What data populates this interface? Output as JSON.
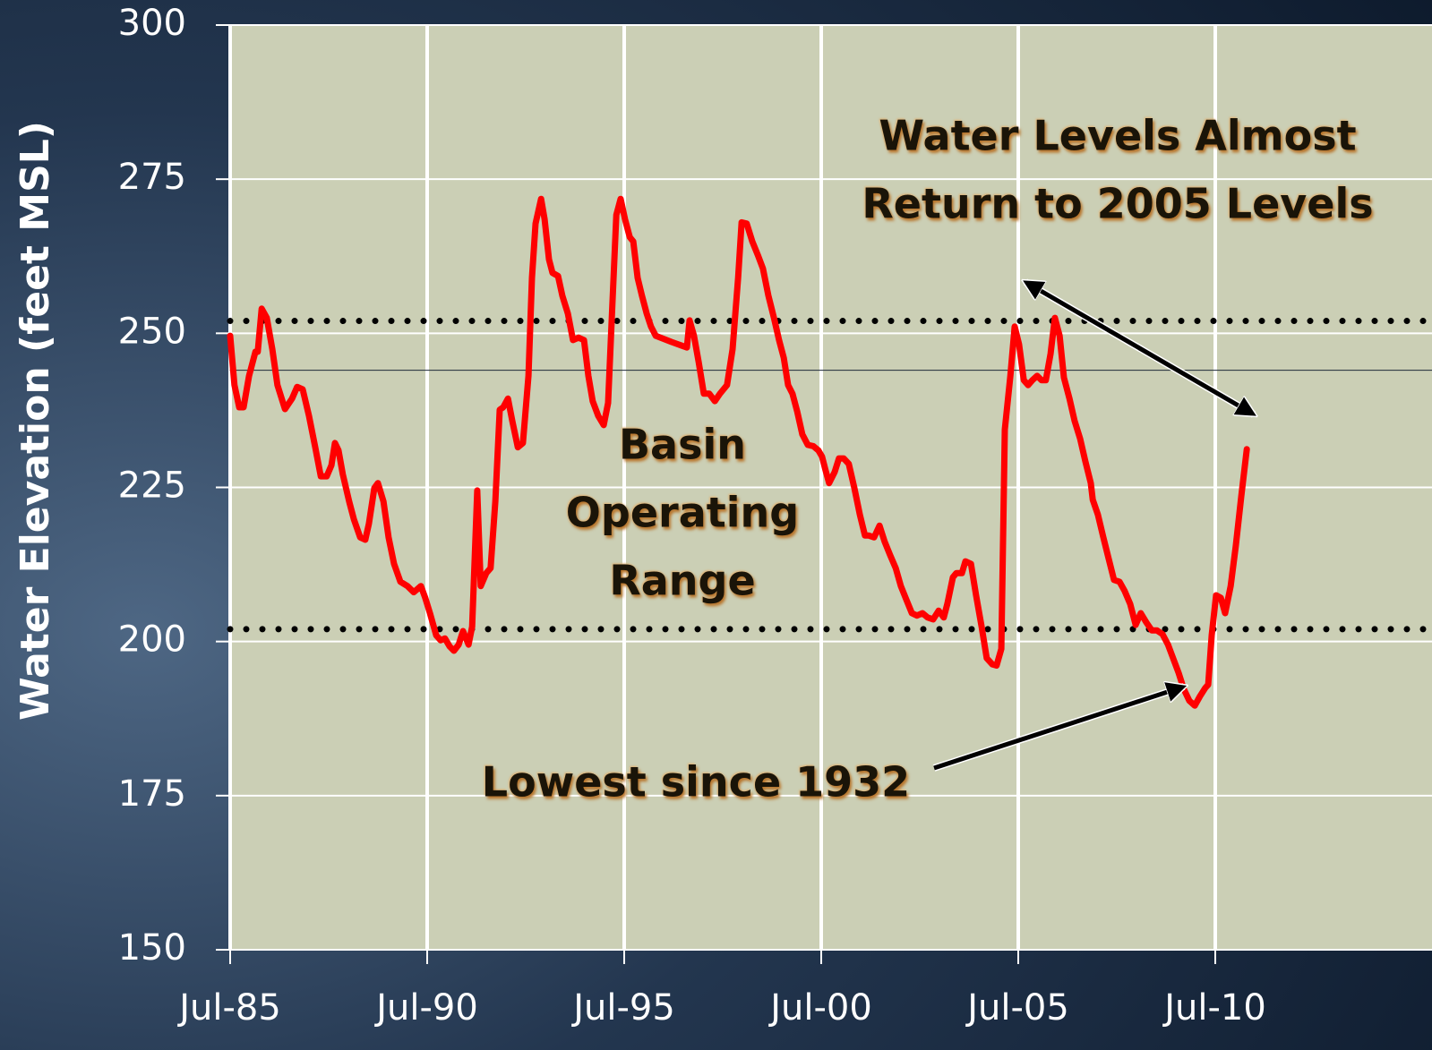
{
  "chart_data": {
    "type": "line",
    "y_label": "Water Elevation (feet MSL)",
    "x": [
      1985.5,
      1985.61,
      1985.73,
      1985.84,
      1985.98,
      1986.14,
      1986.2,
      1986.3,
      1986.43,
      1986.57,
      1986.7,
      1986.89,
      1987.07,
      1987.2,
      1987.34,
      1987.5,
      1987.66,
      1987.8,
      1987.95,
      1988.07,
      1988.16,
      1988.25,
      1988.36,
      1988.52,
      1988.64,
      1988.8,
      1988.93,
      1989.02,
      1989.16,
      1989.25,
      1989.39,
      1989.52,
      1989.66,
      1989.82,
      1990.0,
      1990.16,
      1990.34,
      1990.45,
      1990.57,
      1990.73,
      1990.84,
      1990.95,
      1991.07,
      1991.18,
      1991.3,
      1991.41,
      1991.55,
      1991.64,
      1991.77,
      1991.86,
      1992.0,
      1992.11,
      1992.23,
      1992.34,
      1992.43,
      1992.55,
      1992.66,
      1992.8,
      1992.93,
      1993.07,
      1993.16,
      1993.25,
      1993.39,
      1993.48,
      1993.59,
      1993.68,
      1993.82,
      1993.93,
      1994.07,
      1994.2,
      1994.34,
      1994.48,
      1994.59,
      1994.7,
      1994.84,
      1994.98,
      1995.09,
      1995.2,
      1995.3,
      1995.41,
      1995.52,
      1995.64,
      1995.73,
      1995.84,
      1995.95,
      1996.07,
      1996.18,
      1996.3,
      1996.7,
      1997.09,
      1997.16,
      1997.27,
      1997.39,
      1997.52,
      1997.66,
      1997.8,
      1997.93,
      1998.11,
      1998.25,
      1998.39,
      1998.48,
      1998.61,
      1998.75,
      1998.89,
      1999.02,
      1999.16,
      1999.3,
      1999.43,
      1999.55,
      1999.66,
      1999.77,
      1999.89,
      2000.02,
      2000.16,
      2000.3,
      2000.43,
      2000.52,
      2000.61,
      2000.7,
      2000.84,
      2000.95,
      2001.07,
      2001.2,
      2001.34,
      2001.48,
      2001.61,
      2001.7,
      2001.84,
      2001.98,
      2002.11,
      2002.25,
      2002.39,
      2002.52,
      2002.66,
      2002.8,
      2002.93,
      2003.07,
      2003.2,
      2003.34,
      2003.48,
      2003.61,
      2003.7,
      2003.84,
      2003.93,
      2004.07,
      2004.16,
      2004.3,
      2004.43,
      2004.57,
      2004.7,
      2004.84,
      2004.95,
      2005.07,
      2005.16,
      2005.3,
      2005.41,
      2005.52,
      2005.64,
      2005.75,
      2005.86,
      2005.98,
      2006.09,
      2006.2,
      2006.32,
      2006.43,
      2006.55,
      2006.66,
      2006.8,
      2006.93,
      2007.07,
      2007.2,
      2007.34,
      2007.39,
      2007.52,
      2007.66,
      2007.8,
      2007.93,
      2008.07,
      2008.2,
      2008.34,
      2008.48,
      2008.61,
      2008.75,
      2008.89,
      2009.02,
      2009.16,
      2009.3,
      2009.43,
      2009.57,
      2009.7,
      2009.84,
      2009.98,
      2010.11,
      2010.25,
      2010.32,
      2010.41,
      2010.52,
      2010.64,
      2010.75,
      2010.89,
      2011.02,
      2011.16,
      2011.3
    ],
    "series": [
      {
        "color": "#ff0000",
        "values": [
          249.6,
          241.6,
          238.0,
          238.0,
          243.1,
          247.0,
          247.0,
          254.0,
          252.5,
          247.4,
          241.6,
          237.7,
          239.4,
          241.3,
          240.9,
          236.6,
          231.5,
          226.8,
          226.8,
          228.6,
          232.2,
          231.0,
          227.1,
          222.7,
          219.8,
          216.9,
          216.5,
          219.1,
          224.9,
          225.7,
          222.7,
          216.9,
          212.6,
          209.7,
          209.0,
          208.0,
          209.0,
          207.1,
          204.6,
          201.0,
          200.2,
          200.5,
          199.2,
          198.5,
          199.5,
          201.7,
          199.5,
          202.4,
          224.5,
          209.0,
          211.1,
          211.9,
          222.7,
          237.6,
          238.0,
          239.4,
          235.8,
          231.5,
          232.2,
          243.1,
          259.0,
          267.8,
          271.8,
          268.5,
          262.0,
          259.8,
          259.3,
          256.1,
          253.2,
          248.9,
          249.3,
          248.9,
          243.1,
          239.0,
          236.6,
          235.1,
          238.7,
          254.7,
          269.2,
          271.8,
          268.5,
          265.6,
          264.9,
          259.0,
          256.1,
          253.2,
          251.1,
          249.6,
          248.6,
          247.7,
          252.1,
          249.6,
          245.3,
          240.2,
          240.2,
          239.0,
          240.2,
          241.6,
          247.4,
          259.0,
          268.0,
          267.8,
          264.9,
          262.7,
          260.5,
          256.1,
          252.5,
          248.9,
          246.0,
          241.6,
          240.2,
          237.3,
          233.6,
          231.9,
          231.7,
          231.0,
          230.0,
          227.8,
          225.7,
          227.5,
          229.7,
          229.7,
          228.8,
          224.9,
          220.6,
          217.2,
          217.2,
          216.9,
          218.8,
          216.2,
          214.0,
          211.9,
          209.0,
          206.8,
          204.6,
          204.2,
          204.6,
          203.9,
          203.6,
          205.0,
          203.9,
          206.1,
          210.4,
          211.1,
          211.1,
          213.0,
          212.6,
          207.5,
          202.4,
          197.3,
          196.3,
          196.1,
          198.8,
          234.4,
          243.1,
          251.1,
          248.2,
          242.4,
          241.6,
          242.4,
          243.1,
          242.4,
          242.4,
          246.7,
          252.5,
          249.6,
          242.8,
          239.4,
          235.8,
          232.9,
          229.3,
          225.7,
          223.0,
          220.6,
          216.9,
          213.3,
          210.0,
          209.7,
          208.2,
          206.1,
          202.7,
          204.6,
          203.1,
          201.8,
          201.8,
          201.2,
          199.5,
          197.3,
          194.9,
          192.3,
          190.4,
          189.6,
          191.1,
          192.5,
          193.0,
          201.0,
          207.5,
          207.1,
          204.6,
          209.0,
          215.5,
          223.5,
          231.2
        ]
      }
    ],
    "xlim": [
      1985.5,
      2016.0
    ],
    "xticks": [
      {
        "value": 1985.5,
        "label": "Jul-85"
      },
      {
        "value": 1990.5,
        "label": "Jul-90"
      },
      {
        "value": 1995.5,
        "label": "Jul-95"
      },
      {
        "value": 2000.5,
        "label": "Jul-00"
      },
      {
        "value": 2005.5,
        "label": "Jul-05"
      },
      {
        "value": 2010.5,
        "label": "Jul-10"
      }
    ],
    "ylim": [
      150,
      300
    ],
    "yticks": [
      150,
      175,
      200,
      225,
      250,
      275,
      300
    ],
    "grid": true,
    "reference_lines": [
      {
        "value": 252,
        "style": "dotted"
      },
      {
        "value": 202,
        "style": "dotted"
      },
      {
        "value": 244,
        "style": "solid"
      }
    ],
    "annotations": [
      {
        "lines": [
          "Water Levels Almost",
          "Return to 2005 Levels"
        ]
      },
      {
        "lines": [
          "Basin",
          "Operating",
          "Range"
        ]
      },
      {
        "lines": [
          "Lowest since 1932"
        ]
      }
    ]
  }
}
